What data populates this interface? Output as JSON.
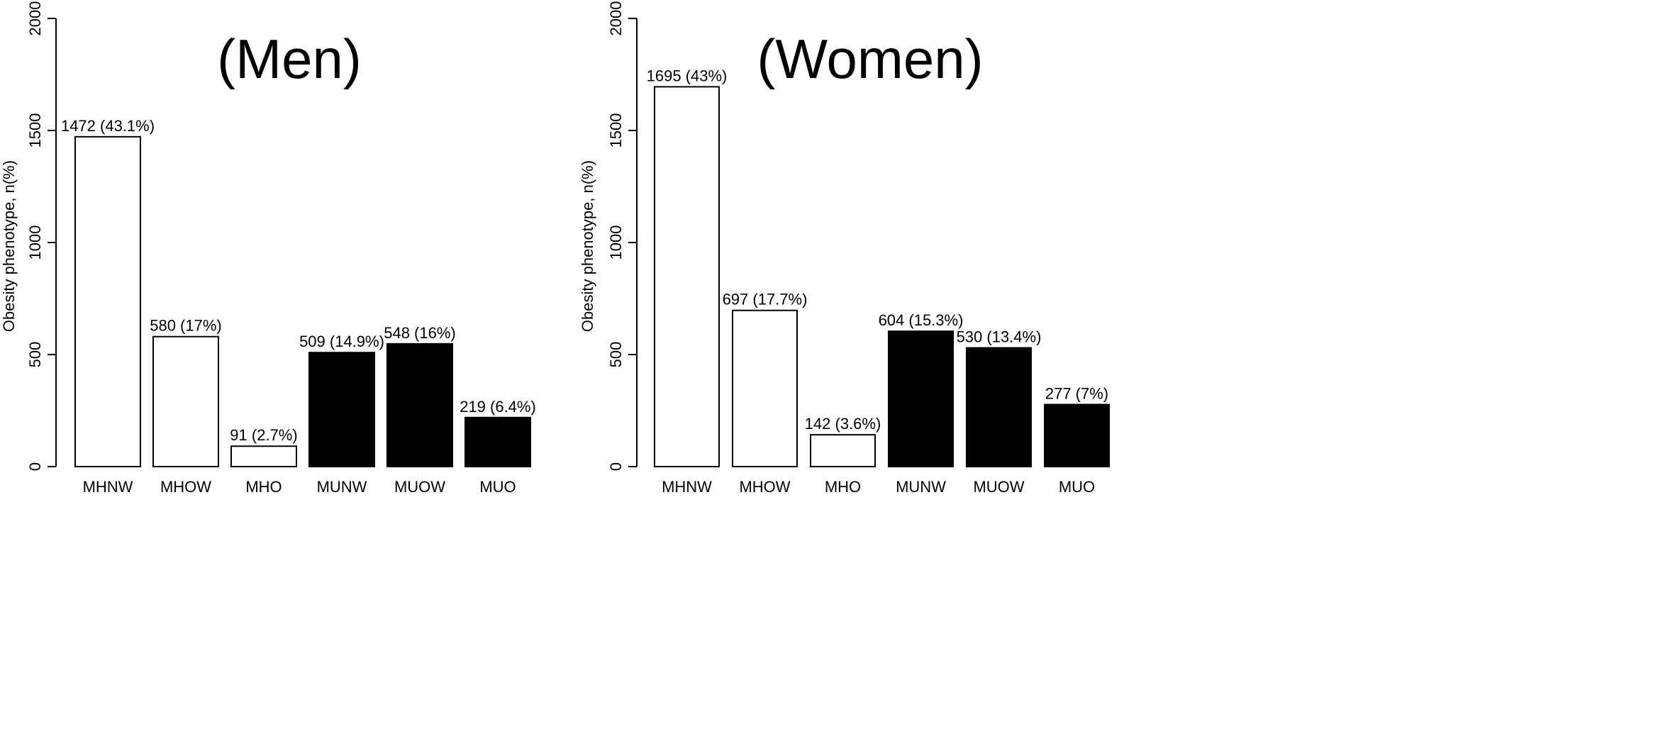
{
  "chart_data": [
    {
      "type": "bar",
      "title": "(Men)",
      "ylabel": "Obesity phenotype, n(%)",
      "xlabel": "",
      "ylim": [
        0,
        2000
      ],
      "yticks": [
        0,
        500,
        1000,
        1500,
        2000
      ],
      "categories": [
        "MHNW",
        "MHOW",
        "MHO",
        "MUNW",
        "MUOW",
        "MUO"
      ],
      "values": [
        1472,
        580,
        91,
        509,
        548,
        219
      ],
      "labels": [
        "1472 (43.1%)",
        "580 (17%)",
        "91 (2.7%)",
        "509 (14.9%)",
        "548 (16%)",
        "219 (6.4%)"
      ],
      "fills": [
        "#ffffff",
        "#ffffff",
        "#ffffff",
        "#000000",
        "#000000",
        "#000000"
      ],
      "grid": false
    },
    {
      "type": "bar",
      "title": "(Women)",
      "ylabel": "Obesity phenotype, n(%)",
      "xlabel": "",
      "ylim": [
        0,
        2000
      ],
      "yticks": [
        0,
        500,
        1000,
        1500,
        2000
      ],
      "categories": [
        "MHNW",
        "MHOW",
        "MHO",
        "MUNW",
        "MUOW",
        "MUO"
      ],
      "values": [
        1695,
        697,
        142,
        604,
        530,
        277
      ],
      "labels": [
        "1695 (43%)",
        "697 (17.7%)",
        "142 (3.6%)",
        "604 (15.3%)",
        "530 (13.4%)",
        "277 (7%)"
      ],
      "fills": [
        "#ffffff",
        "#ffffff",
        "#ffffff",
        "#000000",
        "#000000",
        "#000000"
      ],
      "grid": false
    }
  ]
}
